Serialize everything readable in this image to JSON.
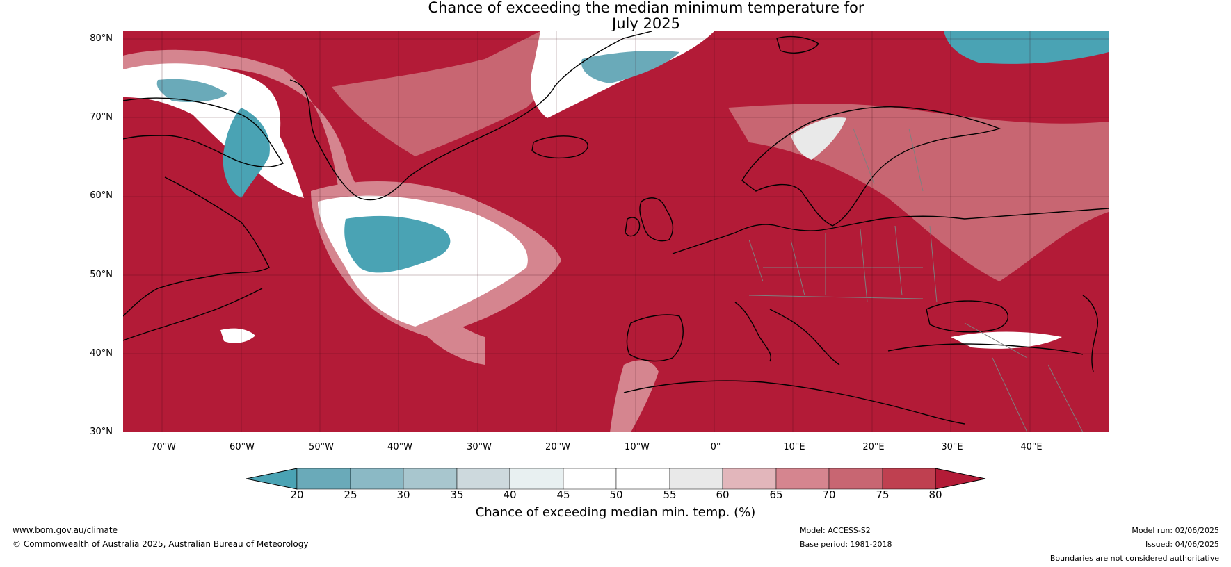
{
  "title": {
    "line1": "Chance of exceeding the median minimum temperature for",
    "line2": "July 2025"
  },
  "map": {
    "lat_labels": [
      "80°N",
      "70°N",
      "60°N",
      "50°N",
      "40°N",
      "30°N"
    ],
    "lon_labels": [
      "70°W",
      "60°W",
      "50°W",
      "40°W",
      "30°W",
      "20°W",
      "10°W",
      "0°",
      "10°E",
      "20°E",
      "30°E",
      "40°E"
    ],
    "colors": {
      "high": "#b31b37",
      "low": "#4aa3b4",
      "coastline": "#000000",
      "border": "#7f7f7f"
    }
  },
  "colorbar": {
    "ticks": [
      "20",
      "25",
      "30",
      "35",
      "40",
      "45",
      "50",
      "55",
      "60",
      "65",
      "70",
      "75",
      "80"
    ],
    "bins": [
      "#4aa3b4",
      "#6aaab9",
      "#8bb9c5",
      "#a8c6ce",
      "#cdd9dd",
      "#e8f0f1",
      "#ffffff",
      "#ffffff",
      "#e9e9e9",
      "#e2b6bb",
      "#d5858f",
      "#c86672",
      "#bf4050",
      "#b31b37"
    ],
    "label": "Chance of exceeding median min. temp. (%)"
  },
  "footer": {
    "website": "www.bom.gov.au/climate",
    "copyright": "© Commonwealth of Australia 2025, Australian Bureau of Meteorology",
    "model": "Model: ACCESS-S2",
    "base_period": "Base period: 1981-2018",
    "model_run": "Model run: 02/06/2025",
    "issued": "Issued: 04/06/2025",
    "disclaimer": "Boundaries are not considered authoritative"
  }
}
